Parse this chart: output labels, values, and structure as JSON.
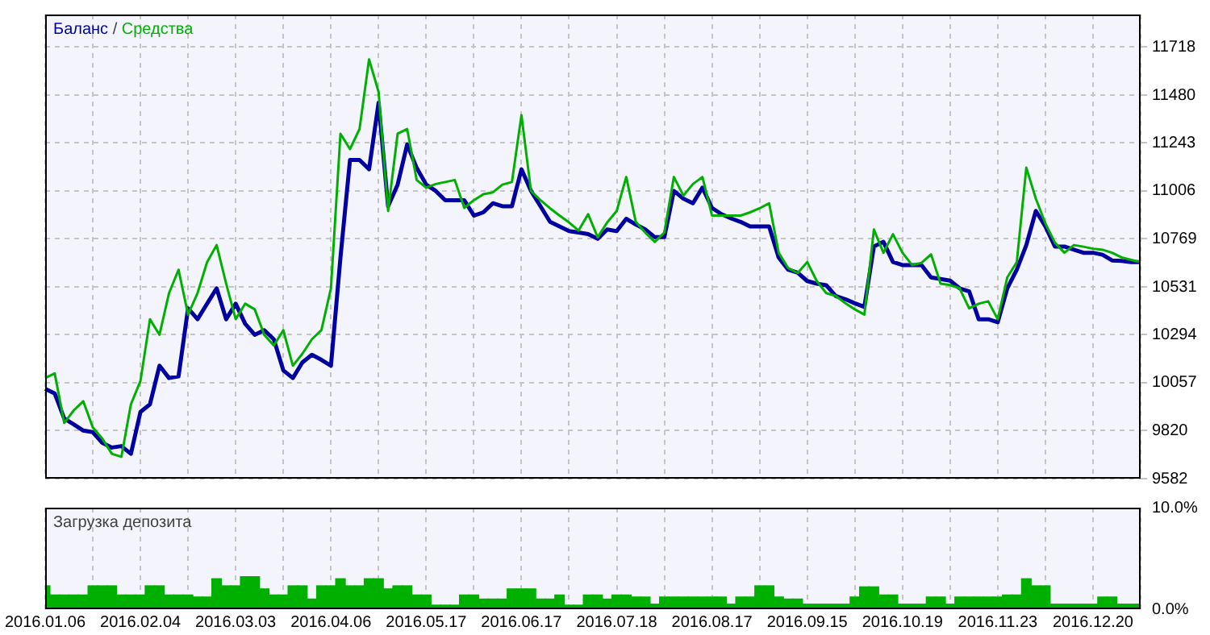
{
  "chart_data": [
    {
      "type": "line",
      "legend": "top left",
      "grid": true,
      "tick_labels": "y",
      "annotations": [
        "/"
      ],
      "ylim": [
        9582,
        11879
      ],
      "categories": [
        "2016.01.06",
        null,
        null,
        null,
        null,
        null,
        null,
        null,
        null,
        null,
        "2016.02.04",
        null,
        null,
        null,
        null,
        null,
        null,
        null,
        null,
        null,
        "2016.03.03",
        null,
        null,
        null,
        null,
        null,
        null,
        null,
        null,
        null,
        "2016.04.06",
        null,
        null,
        null,
        null,
        null,
        null,
        null,
        null,
        null,
        "2016.05.17",
        null,
        null,
        null,
        null,
        null,
        null,
        null,
        null,
        null,
        "2016.06.17",
        null,
        null,
        null,
        null,
        null,
        null,
        null,
        null,
        null,
        "2016.07.18",
        null,
        null,
        null,
        null,
        null,
        null,
        null,
        null,
        null,
        "2016.08.17",
        null,
        null,
        null,
        null,
        null,
        null,
        null,
        null,
        null,
        "2016.09.15",
        null,
        null,
        null,
        null,
        null,
        null,
        null,
        null,
        null,
        "2016.10.19",
        null,
        null,
        null,
        null,
        null,
        null,
        null,
        null,
        null,
        "2016.11.23",
        null,
        null,
        null,
        null,
        null,
        null,
        null,
        null,
        null,
        "2016.12.20",
        null,
        null,
        null,
        null,
        null
      ],
      "yticks": [
        9582,
        9820,
        10057,
        10294,
        10531,
        10769,
        11006,
        11243,
        11480,
        11718
      ],
      "series": [
        {
          "name": "Баланс",
          "color": "#0000a0",
          "values": [
            10027,
            10004,
            9880,
            9851,
            9820,
            9812,
            9759,
            9736,
            9743,
            9705,
            9912,
            9950,
            10141,
            10080,
            10088,
            10425,
            10371,
            10448,
            10524,
            10371,
            10448,
            10348,
            10294,
            10317,
            10272,
            10118,
            10080,
            10157,
            10195,
            10170,
            10141,
            10677,
            11159,
            11159,
            11113,
            11442,
            10930,
            11037,
            11236,
            11120,
            11037,
            11006,
            10960,
            10960,
            10960,
            10884,
            10900,
            10945,
            10930,
            10930,
            11113,
            11006,
            10930,
            10853,
            10830,
            10807,
            10800,
            10792,
            10769,
            10815,
            10807,
            10868,
            10840,
            10815,
            10777,
            10777,
            11006,
            10968,
            10945,
            11022,
            10922,
            10891,
            10870,
            10853,
            10830,
            10830,
            10830,
            10677,
            10616,
            10601,
            10560,
            10547,
            10539,
            10486,
            10470,
            10450,
            10432,
            10731,
            10754,
            10654,
            10639,
            10639,
            10639,
            10578,
            10570,
            10562,
            10524,
            10509,
            10371,
            10371,
            10356,
            10524,
            10616,
            10738,
            10907,
            10830,
            10731,
            10731,
            10715,
            10700,
            10700,
            10690,
            10662,
            10660,
            10654,
            10654
          ]
        },
        {
          "name": "Средства",
          "color": "#00b000",
          "values": [
            10080,
            10103,
            9858,
            9920,
            9965,
            9835,
            9780,
            9705,
            9690,
            9950,
            10065,
            10371,
            10294,
            10500,
            10616,
            10394,
            10501,
            10654,
            10738,
            10547,
            10371,
            10448,
            10420,
            10294,
            10241,
            10317,
            10141,
            10200,
            10272,
            10317,
            10524,
            11289,
            11213,
            11312,
            11657,
            11496,
            10907,
            11289,
            11312,
            11060,
            11022,
            11040,
            11050,
            11060,
            10922,
            10960,
            10990,
            10999,
            11037,
            11050,
            11381,
            11006,
            10960,
            10920,
            10884,
            10850,
            10810,
            10891,
            10777,
            10850,
            10907,
            11075,
            10853,
            10800,
            10754,
            10800,
            11075,
            10983,
            11040,
            11075,
            10884,
            10884,
            10884,
            10884,
            10900,
            10920,
            10945,
            10700,
            10624,
            10600,
            10654,
            10560,
            10500,
            10486,
            10450,
            10420,
            10394,
            10815,
            10700,
            10792,
            10700,
            10639,
            10650,
            10692,
            10547,
            10540,
            10524,
            10425,
            10448,
            10460,
            10371,
            10578,
            10654,
            11121,
            10968,
            10845,
            10750,
            10700,
            10738,
            10730,
            10720,
            10715,
            10700,
            10677,
            10665,
            10654
          ]
        }
      ]
    },
    {
      "type": "bar",
      "title": "Загрузка депозита",
      "grid": "x",
      "ylim": [
        0,
        10
      ],
      "categories": [
        "2016.01.06",
        null,
        null,
        null,
        null,
        null,
        null,
        null,
        null,
        null,
        "2016.02.04",
        null,
        null,
        null,
        null,
        null,
        null,
        null,
        null,
        null,
        "2016.03.03",
        null,
        null,
        null,
        null,
        null,
        null,
        null,
        null,
        null,
        "2016.04.06",
        null,
        null,
        null,
        null,
        null,
        null,
        null,
        null,
        null,
        "2016.05.17",
        null,
        null,
        null,
        null,
        null,
        null,
        null,
        null,
        null,
        "2016.06.17",
        null,
        null,
        null,
        null,
        null,
        null,
        null,
        null,
        null,
        "2016.07.18",
        null,
        null,
        null,
        null,
        null,
        null,
        null,
        null,
        null,
        "2016.08.17",
        null,
        null,
        null,
        null,
        null,
        null,
        null,
        null,
        null,
        "2016.09.15",
        null,
        null,
        null,
        null,
        null,
        null,
        null,
        null,
        null,
        "2016.10.19",
        null,
        null,
        null,
        null,
        null,
        null,
        null,
        null,
        null,
        "2016.11.23",
        null,
        null,
        null,
        null,
        null,
        null,
        null,
        null,
        null,
        "2016.12.20",
        null,
        null,
        null,
        null,
        null
      ],
      "yticks": [
        {
          "value": 0,
          "label": "0.0%"
        },
        {
          "value": 10,
          "label": "10.0%"
        }
      ],
      "series": [
        {
          "color": "#00b000",
          "values": [
            2.3,
            1.4,
            1.4,
            1.4,
            1.4,
            2.3,
            2.3,
            2.3,
            1.4,
            1.4,
            1.4,
            2.3,
            2.3,
            1.4,
            1.4,
            1.4,
            1.2,
            1.2,
            3.0,
            2.3,
            2.3,
            3.2,
            3.2,
            2.0,
            1.4,
            1.4,
            2.3,
            2.3,
            1.0,
            2.3,
            2.3,
            3.0,
            2.3,
            2.3,
            3.0,
            3.0,
            2.0,
            2.3,
            2.3,
            1.4,
            1.4,
            0.4,
            0.4,
            0.4,
            1.4,
            1.4,
            1.0,
            1.0,
            1.0,
            2.0,
            2.0,
            2.0,
            1.0,
            1.0,
            1.4,
            0.4,
            0.4,
            1.4,
            1.4,
            1.0,
            1.4,
            1.4,
            1.2,
            1.2,
            0.5,
            1.2,
            1.2,
            1.2,
            1.2,
            1.2,
            1.2,
            1.2,
            0.5,
            1.2,
            1.2,
            2.3,
            2.3,
            1.2,
            1.0,
            1.0,
            0.5,
            0.5,
            0.5,
            0.5,
            0.5,
            1.2,
            2.2,
            2.2,
            1.4,
            1.4,
            0.5,
            0.5,
            0.5,
            1.2,
            1.2,
            0.5,
            1.2,
            1.2,
            1.2,
            1.2,
            1.2,
            1.4,
            1.4,
            3.0,
            2.3,
            2.3,
            0.5,
            0.5,
            0.5,
            0.5,
            0.5,
            1.2,
            1.2,
            0.5,
            0.5,
            0.5
          ]
        }
      ]
    }
  ]
}
